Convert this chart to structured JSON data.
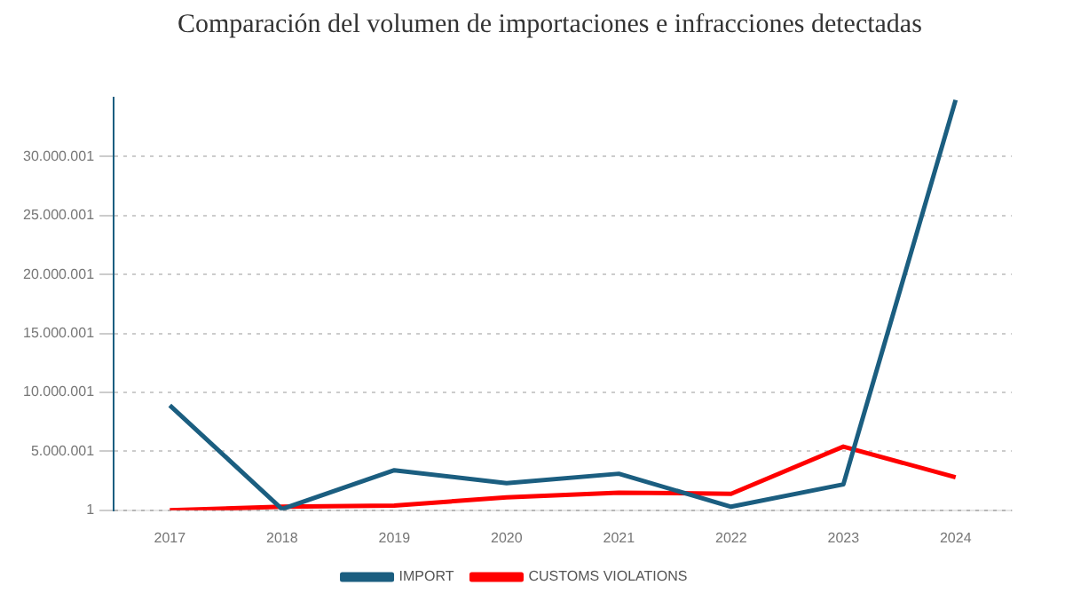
{
  "chart_data": {
    "type": "line",
    "title": "Comparación del volumen de importaciones e infracciones detectadas",
    "categories": [
      "2017",
      "2018",
      "2019",
      "2020",
      "2021",
      "2022",
      "2023",
      "2024"
    ],
    "series": [
      {
        "name": "IMPORT",
        "color": "#1b5e80",
        "values": [
          8900000,
          100000,
          3400000,
          2300000,
          3100000,
          300000,
          2200000,
          34800000
        ]
      },
      {
        "name": "CUSTOMS VIOLATIONS",
        "color": "#ff0000",
        "values": [
          1,
          300000,
          400000,
          1100000,
          1500000,
          1400000,
          5400000,
          2800000
        ]
      }
    ],
    "ylim": [
      1,
      35000001
    ],
    "yticks": [
      1,
      {
        "value": 5000001,
        "label": "5.000.001"
      },
      {
        "value": 10000001,
        "label": "10.000.001"
      },
      {
        "value": 15000001,
        "label": "15.000.001"
      },
      {
        "value": 20000001,
        "label": "20.000.001"
      },
      {
        "value": 25000001,
        "label": "25.000.001"
      },
      {
        "value": 30000001,
        "label": "30.000.001"
      }
    ],
    "grid": "y",
    "legend": "bottom",
    "marker": "none",
    "line_style": "solid"
  }
}
